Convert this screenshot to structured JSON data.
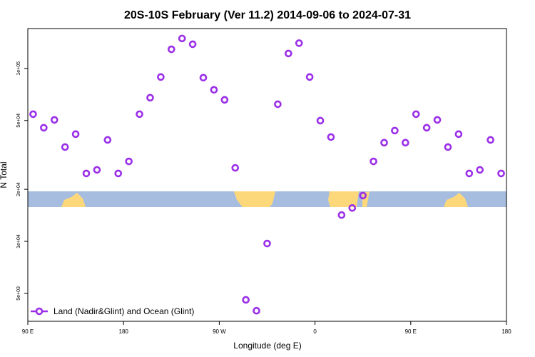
{
  "chart_data": {
    "type": "scatter",
    "title": "20S-10S February (Ver 11.2)   2014-09-06 to 2024-07-31",
    "x_label": "Longitude (deg E)",
    "y_label": "N Total",
    "xlim": [
      90,
      540
    ],
    "xticks": [
      {
        "value": 90,
        "label": "90 E"
      },
      {
        "value": 180,
        "label": "180"
      },
      {
        "value": 270,
        "label": "90 W"
      },
      {
        "value": 360,
        "label": "0"
      },
      {
        "value": 450,
        "label": "90 E"
      },
      {
        "value": 540,
        "label": "180"
      }
    ],
    "ylim": [
      3450,
      170000
    ],
    "log_y": true,
    "yticks": [
      {
        "value": 5000,
        "label": "5e+03"
      },
      {
        "value": 10000,
        "label": "1e+04"
      },
      {
        "value": 20000,
        "label": "2e+04"
      },
      {
        "value": 50000,
        "label": "5e+04"
      },
      {
        "value": 100000,
        "label": "1e+05"
      }
    ],
    "legend_position": "lower left",
    "series": [
      {
        "name": "Land (Nadir&Glint) and Ocean (Glint)",
        "color": "#9b30e8",
        "x": [
          95,
          105,
          115,
          125,
          135,
          145,
          155,
          165,
          175,
          185,
          195,
          205,
          215,
          225,
          235,
          245,
          255,
          265,
          275,
          285,
          295,
          305,
          315,
          325,
          335,
          345,
          355,
          365,
          375,
          385,
          395,
          405,
          415,
          425,
          435,
          445,
          455,
          465,
          475,
          485,
          495,
          505,
          515,
          525,
          535
        ],
        "values": [
          54400,
          45400,
          50400,
          35100,
          41700,
          24700,
          25900,
          38600,
          24700,
          29000,
          54400,
          67700,
          89200,
          129000,
          149000,
          138000,
          88400,
          75200,
          65800,
          26600,
          4590,
          3970,
          9720,
          62100,
          122000,
          140000,
          89200,
          49900,
          40100,
          14200,
          15600,
          18400,
          29000,
          37200,
          43700,
          37200,
          54400,
          45400,
          50400,
          35100,
          41700,
          24700,
          25900,
          38600,
          24700
        ]
      }
    ]
  }
}
